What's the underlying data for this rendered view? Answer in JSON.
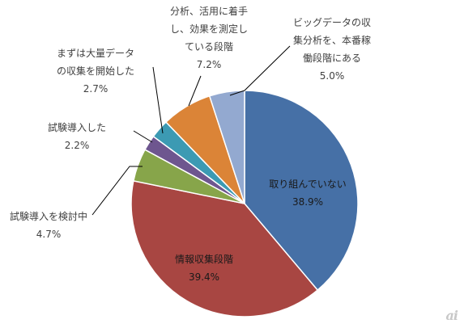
{
  "chart_data": {
    "type": "pie",
    "start_angle_deg": 0,
    "direction": "clockwise",
    "slices": [
      {
        "label": [
          "取り組んでいない"
        ],
        "value": 38.9,
        "value_text": "38.9%",
        "color": "#4670A6",
        "label_inside": true
      },
      {
        "label": [
          "情報収集段階"
        ],
        "value": 39.4,
        "value_text": "39.4%",
        "color": "#A84642",
        "label_inside": true
      },
      {
        "label": [
          "試験導入を検討中"
        ],
        "value": 4.7,
        "value_text": "4.7%",
        "color": "#87A54A",
        "label_inside": false
      },
      {
        "label": [
          "試験導入した"
        ],
        "value": 2.2,
        "value_text": "2.2%",
        "color": "#6E568F",
        "label_inside": false
      },
      {
        "label": [
          "まずは大量データ",
          "の収集を開始した"
        ],
        "value": 2.7,
        "value_text": "2.7%",
        "color": "#3C9AB3",
        "label_inside": false
      },
      {
        "label": [
          "分析、活用に着手",
          "し、効果を測定し",
          "ている段階"
        ],
        "value": 7.2,
        "value_text": "7.2%",
        "color": "#DB8437",
        "label_inside": false
      },
      {
        "label": [
          "ビッグデータの収",
          "集分析を、本番稼",
          "働段階にある"
        ],
        "value": 5.0,
        "value_text": "5.0%",
        "color": "#93A9D0",
        "label_inside": false
      }
    ]
  },
  "watermark": {
    "text": "ai"
  }
}
